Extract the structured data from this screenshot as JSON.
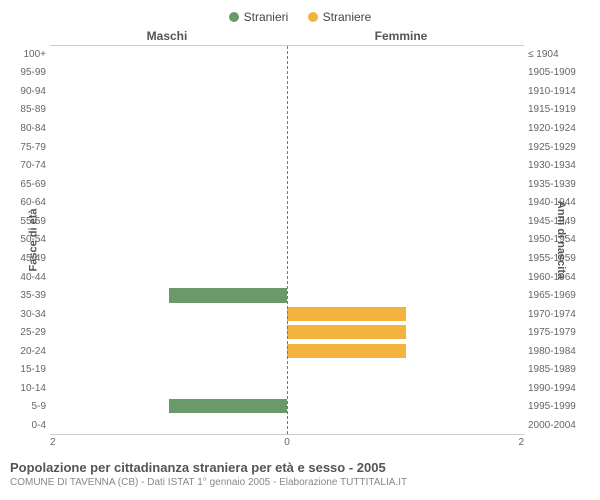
{
  "legend": {
    "male": {
      "label": "Stranieri",
      "color": "#6a9a6a"
    },
    "female": {
      "label": "Straniere",
      "color": "#f3b33e"
    }
  },
  "headers": {
    "left": "Maschi",
    "right": "Femmine"
  },
  "axes": {
    "left_title": "Fasce di età",
    "right_title": "Anni di nascita",
    "x_ticks": [
      "2",
      "0",
      "2"
    ],
    "x_max": 2
  },
  "style": {
    "bg": "#ffffff",
    "axis_color": "#777777",
    "label_color": "#666666",
    "bar_height_pct": 78
  },
  "rows": [
    {
      "age": "100+",
      "birth": "≤ 1904",
      "m": 0,
      "f": 0
    },
    {
      "age": "95-99",
      "birth": "1905-1909",
      "m": 0,
      "f": 0
    },
    {
      "age": "90-94",
      "birth": "1910-1914",
      "m": 0,
      "f": 0
    },
    {
      "age": "85-89",
      "birth": "1915-1919",
      "m": 0,
      "f": 0
    },
    {
      "age": "80-84",
      "birth": "1920-1924",
      "m": 0,
      "f": 0
    },
    {
      "age": "75-79",
      "birth": "1925-1929",
      "m": 0,
      "f": 0
    },
    {
      "age": "70-74",
      "birth": "1930-1934",
      "m": 0,
      "f": 0
    },
    {
      "age": "65-69",
      "birth": "1935-1939",
      "m": 0,
      "f": 0
    },
    {
      "age": "60-64",
      "birth": "1940-1944",
      "m": 0,
      "f": 0
    },
    {
      "age": "55-59",
      "birth": "1945-1949",
      "m": 0,
      "f": 0
    },
    {
      "age": "50-54",
      "birth": "1950-1954",
      "m": 0,
      "f": 0
    },
    {
      "age": "45-49",
      "birth": "1955-1959",
      "m": 0,
      "f": 0
    },
    {
      "age": "40-44",
      "birth": "1960-1964",
      "m": 0,
      "f": 0
    },
    {
      "age": "35-39",
      "birth": "1965-1969",
      "m": 1,
      "f": 0
    },
    {
      "age": "30-34",
      "birth": "1970-1974",
      "m": 0,
      "f": 1
    },
    {
      "age": "25-29",
      "birth": "1975-1979",
      "m": 0,
      "f": 1
    },
    {
      "age": "20-24",
      "birth": "1980-1984",
      "m": 0,
      "f": 1
    },
    {
      "age": "15-19",
      "birth": "1985-1989",
      "m": 0,
      "f": 0
    },
    {
      "age": "10-14",
      "birth": "1990-1994",
      "m": 0,
      "f": 0
    },
    {
      "age": "5-9",
      "birth": "1995-1999",
      "m": 1,
      "f": 0
    },
    {
      "age": "0-4",
      "birth": "2000-2004",
      "m": 0,
      "f": 0
    }
  ],
  "footer": {
    "title": "Popolazione per cittadinanza straniera per età e sesso - 2005",
    "sub": "COMUNE DI TAVENNA (CB) - Dati ISTAT 1° gennaio 2005 - Elaborazione TUTTITALIA.IT"
  }
}
